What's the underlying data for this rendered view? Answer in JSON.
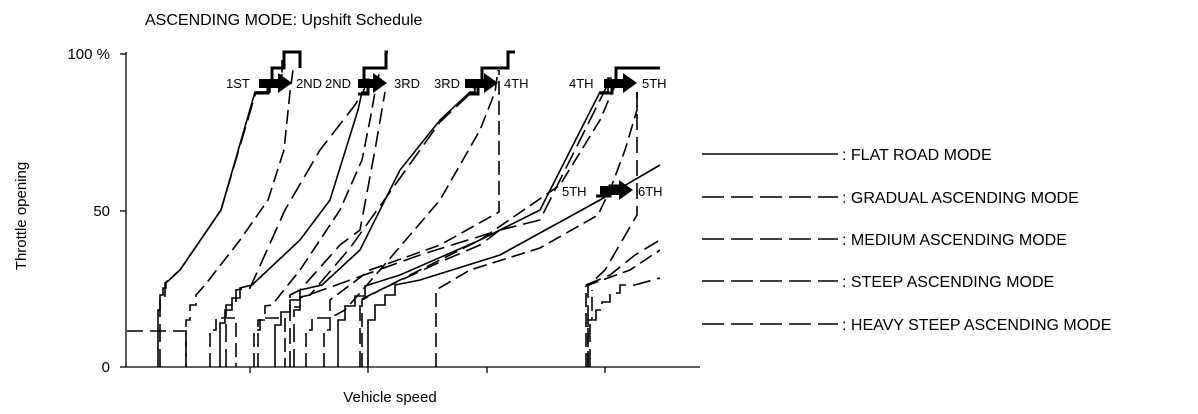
{
  "figure": {
    "title": "ASCENDING MODE: Upshift Schedule",
    "y_axis_label": "Throttle opening",
    "x_axis_label": "Vehicle speed",
    "y_ticks": [
      "100 %",
      "50",
      "0"
    ]
  },
  "shift_labels": {
    "s1_from": "1ST",
    "s1_to": "2ND",
    "s2_from": "2ND",
    "s2_to": "3RD",
    "s3_from": "3RD",
    "s3_to": "4TH",
    "s4_from": "4TH",
    "s4_to": "5TH",
    "s5_from": "5TH",
    "s5_to": "6TH"
  },
  "legend": [
    {
      "label": ": FLAT ROAD MODE",
      "style": "solid"
    },
    {
      "label": ": GRADUAL ASCENDING MODE",
      "style": "dash-long"
    },
    {
      "label": ": MEDIUM ASCENDING MODE",
      "style": "dash-long"
    },
    {
      "label": ": STEEP ASCENDING MODE",
      "style": "dash-long"
    },
    {
      "label": ": HEAVY STEEP ASCENDING MODE",
      "style": "dash-long"
    }
  ]
}
